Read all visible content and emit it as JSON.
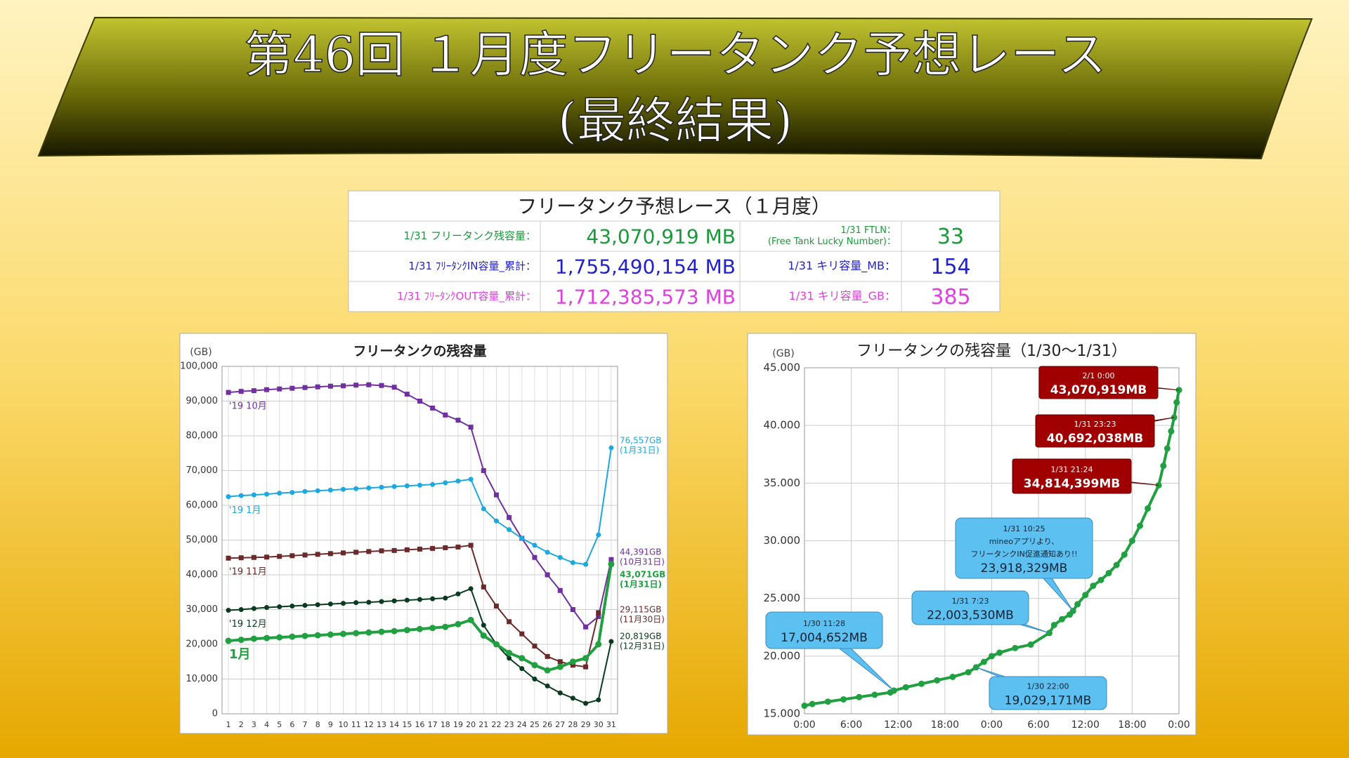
{
  "banner": {
    "title_lines": [
      "第46回 １月度フリータンク予想レース",
      "(最終結果)"
    ]
  },
  "table": {
    "title": "フリータンク予想レース（１月度）",
    "rows": [
      {
        "label": "1/31 フリータンク残容量：",
        "value": "43,070,919 MB",
        "label2": [
          "1/31 FTLN：",
          "(Free Tank Lucky Number)："
        ],
        "value2": "33",
        "color": "#1a9a3a"
      },
      {
        "label": "1/31 ﾌﾘｰﾀﾝｸIN容量_累計：",
        "value": "1,755,490,154 MB",
        "label2": [
          "1/31 キリ容量_MB："
        ],
        "value2": "154",
        "color": "#2222cc"
      },
      {
        "label": "1/31 ﾌﾘｰﾀﾝｸOUT容量_累計：",
        "value": "1,712,385,573 MB",
        "label2": [
          "1/31 キリ容量_GB："
        ],
        "value2": "385",
        "color": "#e040e0"
      }
    ]
  },
  "chart_data": [
    {
      "type": "line",
      "title": "フリータンクの残容量",
      "y_label": "(GB)",
      "grid": true,
      "categories": [
        "1",
        "2",
        "3",
        "4",
        "5",
        "6",
        "7",
        "8",
        "9",
        "10",
        "11",
        "12",
        "13",
        "14",
        "15",
        "16",
        "17",
        "18",
        "19",
        "20",
        "21",
        "22",
        "23",
        "24",
        "25",
        "26",
        "27",
        "28",
        "29",
        "30",
        "31"
      ],
      "ylim": [
        0,
        100000
      ],
      "yticks": [
        0,
        {
          "value": 10000,
          "label": "10,000"
        },
        {
          "value": 20000,
          "label": "20,000"
        },
        {
          "value": 30000,
          "label": "30,000"
        },
        {
          "value": 40000,
          "label": "40,000"
        },
        {
          "value": 50000,
          "label": "50,000"
        },
        {
          "value": 60000,
          "label": "60,000"
        },
        {
          "value": 70000,
          "label": "70,000"
        },
        {
          "value": 80000,
          "label": "80,000"
        },
        {
          "value": 90000,
          "label": "90,000"
        },
        {
          "value": 100000,
          "label": "100,000"
        }
      ],
      "series": [
        {
          "name": "'19 10月",
          "color": "#7030a0",
          "marker": "square",
          "values": [
            92500,
            92800,
            93000,
            93300,
            93500,
            93700,
            93900,
            94100,
            94300,
            94400,
            94600,
            94700,
            94500,
            94000,
            92000,
            90000,
            88000,
            86000,
            84500,
            82500,
            70000,
            63000,
            56500,
            50500,
            45000,
            40000,
            35500,
            30000,
            25000,
            28000,
            44391
          ]
        },
        {
          "name": "'19 1月",
          "color": "#1ca8e0",
          "marker": "circle",
          "values": [
            62500,
            62800,
            63000,
            63200,
            63500,
            63700,
            64000,
            64200,
            64400,
            64600,
            64800,
            65000,
            65200,
            65400,
            65600,
            65800,
            66000,
            66500,
            67000,
            67500,
            59000,
            55500,
            53000,
            50500,
            48500,
            46500,
            45000,
            43500,
            43000,
            51500,
            76557
          ]
        },
        {
          "name": "'19 11月",
          "color": "#6b2a2a",
          "marker": "square",
          "values": [
            44800,
            44900,
            45000,
            45100,
            45300,
            45500,
            45700,
            45900,
            46100,
            46300,
            46500,
            46700,
            46900,
            47000,
            47200,
            47400,
            47600,
            47800,
            48000,
            48500,
            36500,
            31000,
            26500,
            23000,
            19500,
            16500,
            15000,
            14000,
            13500,
            29115,
            null
          ]
        },
        {
          "name": "'19 12月",
          "color": "#0a3a20",
          "marker": "circle",
          "values": [
            29800,
            30000,
            30300,
            30600,
            30800,
            31000,
            31200,
            31400,
            31600,
            31800,
            32000,
            32100,
            32300,
            32500,
            32700,
            32900,
            33100,
            33300,
            34500,
            36000,
            25500,
            20000,
            16000,
            13000,
            10000,
            8000,
            6000,
            4500,
            3000,
            4000,
            20819
          ]
        },
        {
          "name": "1月",
          "color": "#20a040",
          "marker": "circle",
          "values": [
            21000,
            21300,
            21600,
            21800,
            22000,
            22200,
            22400,
            22600,
            22800,
            23000,
            23200,
            23400,
            23600,
            23800,
            24100,
            24400,
            24700,
            25000,
            25800,
            27000,
            22500,
            20000,
            17500,
            16000,
            14000,
            12500,
            13500,
            15000,
            16000,
            20000,
            43071
          ]
        }
      ],
      "annotations": [
        {
          "lines": [
            "76,557GB",
            "(1月31日)"
          ],
          "color": "#1ca8e0"
        },
        {
          "lines": [
            "44,391GB",
            "(10月31日)"
          ],
          "color": "#7030a0"
        },
        {
          "lines": [
            "43,071GB",
            "(1月31日)"
          ],
          "color": "#20a040"
        },
        {
          "lines": [
            "29,115GB",
            "(11月30日)"
          ],
          "color": "#6b2a2a"
        },
        {
          "lines": [
            "20,819GB",
            "(12月31日)"
          ],
          "color": "#0a3a20"
        }
      ]
    },
    {
      "type": "line",
      "title": "フリータンクの残容量（1/30～1/31）",
      "y_label": "(GB)",
      "grid": true,
      "xlim": [
        0,
        48
      ],
      "xticks": [
        {
          "value": 0,
          "label": "0:00"
        },
        {
          "value": 6,
          "label": "6:00"
        },
        {
          "value": 12,
          "label": "12:00"
        },
        {
          "value": 18,
          "label": "18:00"
        },
        {
          "value": 24,
          "label": "0:00"
        },
        {
          "value": 30,
          "label": "6:00"
        },
        {
          "value": 36,
          "label": "12:00"
        },
        {
          "value": 42,
          "label": "18:00"
        },
        {
          "value": 48,
          "label": "0:00"
        }
      ],
      "ylim": [
        15000,
        45000
      ],
      "yticks": [
        {
          "value": 15000,
          "label": "15.000"
        },
        {
          "value": 20000,
          "label": "20.000"
        },
        {
          "value": 25000,
          "label": "25.000"
        },
        {
          "value": 30000,
          "label": "30.000"
        },
        {
          "value": 35000,
          "label": "35.000"
        },
        {
          "value": 40000,
          "label": "40.000"
        },
        {
          "value": 45000,
          "label": "45.000"
        }
      ],
      "x": [
        0,
        1,
        3,
        5,
        7,
        9,
        11,
        11.47,
        13,
        15,
        17,
        19,
        21,
        22,
        23,
        24,
        25,
        27,
        29,
        31.38,
        32,
        33,
        34,
        34.42,
        35,
        36,
        37,
        38,
        39,
        40,
        41,
        42,
        43,
        44,
        45.4,
        46,
        46.5,
        47,
        47.38,
        47.7,
        48
      ],
      "series": [
        {
          "color": "#20a040",
          "marker": "circle",
          "values": [
            15700,
            15850,
            16050,
            16250,
            16450,
            16650,
            16850,
            17005,
            17300,
            17600,
            17900,
            18200,
            18600,
            19029,
            19500,
            20000,
            20300,
            20700,
            21000,
            22004,
            22700,
            23200,
            23600,
            23918,
            24500,
            25300,
            26100,
            26600,
            27200,
            27900,
            28800,
            30000,
            31300,
            32800,
            34814,
            36500,
            38000,
            39500,
            40692,
            42000,
            43071
          ]
        }
      ],
      "annotations": [
        {
          "lines": [
            "2/1 0:00",
            "43,070,919MB"
          ],
          "color": "#a00000"
        },
        {
          "lines": [
            "1/31 23:23",
            "40,692,038MB"
          ],
          "color": "#a00000"
        },
        {
          "lines": [
            "1/31 21:24",
            "34,814,399MB"
          ],
          "color": "#a00000"
        },
        {
          "lines": [
            "1/31 10:25",
            "mineoアプリより、",
            "フリータンクIN促進通知あり!!",
            "23,918,329MB"
          ],
          "color": "#5cc0f0"
        },
        {
          "lines": [
            "1/31 7:23",
            "22,003,530MB"
          ],
          "color": "#5cc0f0"
        },
        {
          "lines": [
            "1/30 11:28",
            "17,004,652MB"
          ],
          "color": "#5cc0f0"
        },
        {
          "lines": [
            "1/30 22:00",
            "19,029,171MB"
          ],
          "color": "#5cc0f0"
        }
      ]
    }
  ]
}
